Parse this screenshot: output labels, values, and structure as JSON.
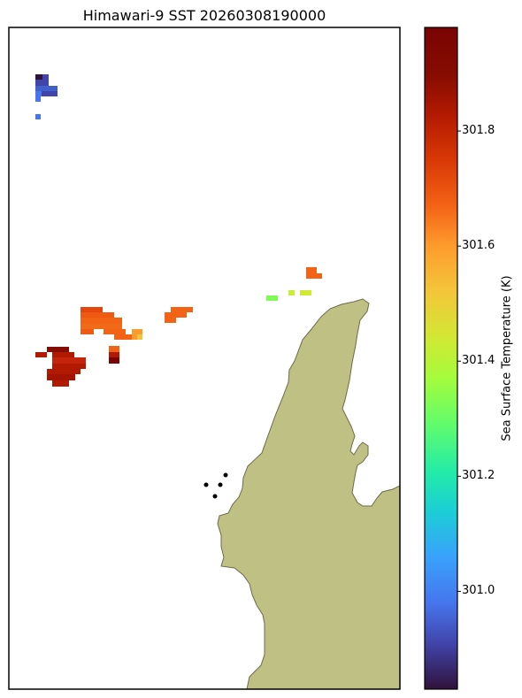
{
  "chart_data": {
    "type": "heatmap",
    "title": "Himawari-9 SST 20260308190000",
    "colorbar": {
      "label": "Sea Surface Temperature (K)",
      "ticks": [
        301.0,
        301.2,
        301.4,
        301.6,
        301.8
      ],
      "range": [
        300.83,
        301.98
      ],
      "colormap": "turbo"
    },
    "pixel_clusters": [
      {
        "location": "upper-left",
        "values": [
          300.85,
          300.9,
          300.95,
          301.0
        ]
      },
      {
        "location": "central-left",
        "values": [
          301.78,
          301.8,
          301.83,
          301.7,
          301.62,
          301.92
        ]
      },
      {
        "location": "lower-left",
        "values": [
          301.88,
          301.92,
          301.95
        ]
      },
      {
        "location": "center",
        "values": [
          301.75,
          301.78
        ]
      },
      {
        "location": "center-right",
        "values": [
          301.45,
          301.55,
          301.72
        ]
      }
    ],
    "land_color": "#bfc184",
    "grid": false
  }
}
